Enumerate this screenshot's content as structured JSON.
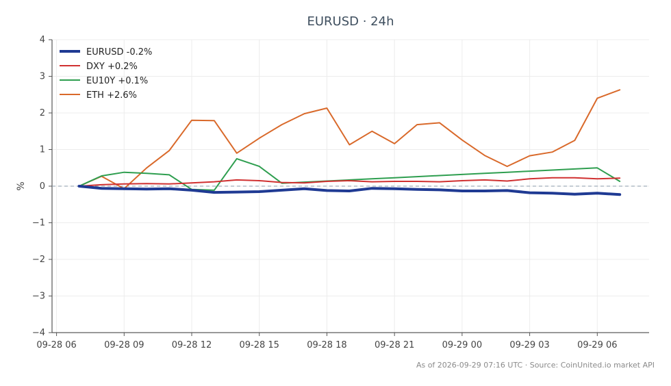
{
  "chart_data": {
    "type": "line",
    "title": "EURUSD · 24h",
    "ylabel": "%",
    "ylim": [
      -4,
      4
    ],
    "yticks": [
      -4,
      -3,
      -2,
      -1,
      0,
      1,
      2,
      3,
      4
    ],
    "ytick_labels": [
      "−4",
      "−3",
      "−2",
      "−1",
      "0",
      "1",
      "2",
      "3",
      "4"
    ],
    "xticks": [
      "09-28 06",
      "09-28 09",
      "09-28 12",
      "09-28 15",
      "09-28 18",
      "09-28 21",
      "09-29 00",
      "09-29 03",
      "09-29 06"
    ],
    "x": [
      "09-28 07",
      "09-28 08",
      "09-28 09",
      "09-28 10",
      "09-28 11",
      "09-28 12",
      "09-28 13",
      "09-28 14",
      "09-28 15",
      "09-28 16",
      "09-28 17",
      "09-28 18",
      "09-28 19",
      "09-28 20",
      "09-28 21",
      "09-28 22",
      "09-28 23",
      "09-29 00",
      "09-29 01",
      "09-29 02",
      "09-29 03",
      "09-29 04",
      "09-29 05",
      "09-29 06",
      "09-29 07"
    ],
    "grid": true,
    "legend_position": "top-left",
    "zero_line": true,
    "series": [
      {
        "name": "EURUSD -0.2%",
        "color": "#1f3a93",
        "width": 4,
        "values": [
          0.0,
          -0.06,
          -0.07,
          -0.08,
          -0.07,
          -0.11,
          -0.17,
          -0.16,
          -0.15,
          -0.11,
          -0.07,
          -0.12,
          -0.13,
          -0.06,
          -0.07,
          -0.09,
          -0.1,
          -0.13,
          -0.13,
          -0.12,
          -0.18,
          -0.19,
          -0.22,
          -0.19,
          -0.23
        ]
      },
      {
        "name": "DXY +0.2%",
        "color": "#d03030",
        "width": 2,
        "values": [
          0.0,
          0.04,
          0.06,
          0.07,
          0.06,
          0.09,
          0.12,
          0.17,
          0.15,
          0.1,
          0.09,
          0.13,
          0.15,
          0.12,
          0.13,
          0.13,
          0.12,
          0.15,
          0.17,
          0.14,
          0.2,
          0.23,
          0.23,
          0.2,
          0.22
        ]
      },
      {
        "name": "EU10Y +0.1%",
        "color": "#2e9e4f",
        "width": 2,
        "values": [
          0.0,
          0.28,
          0.38,
          0.35,
          0.31,
          -0.09,
          -0.11,
          0.75,
          0.54,
          0.08,
          0.11,
          0.14,
          0.17,
          0.2,
          0.23,
          0.26,
          0.29,
          0.32,
          0.35,
          0.38,
          0.41,
          0.44,
          0.47,
          0.5,
          0.13
        ]
      },
      {
        "name": "ETH +2.6%",
        "color": "#d9692a",
        "width": 2,
        "values": [
          0.0,
          0.27,
          -0.07,
          0.5,
          0.97,
          1.8,
          1.79,
          0.9,
          1.31,
          1.68,
          1.98,
          2.13,
          1.13,
          1.5,
          1.16,
          1.68,
          1.73,
          1.26,
          0.84,
          0.54,
          0.83,
          0.93,
          1.25,
          2.4,
          2.63
        ]
      }
    ],
    "footer": "As of 2026-09-29 07:16 UTC · Source: CoinUnited.io market API"
  }
}
